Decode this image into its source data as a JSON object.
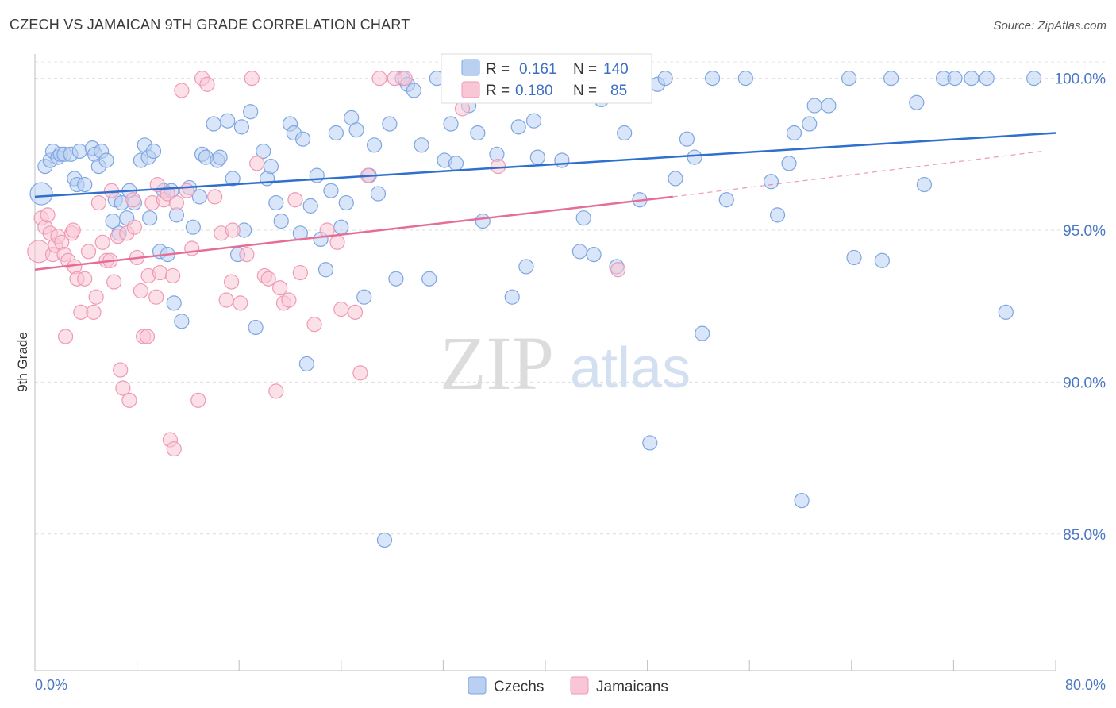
{
  "header": {
    "title": "CZECH VS JAMAICAN 9TH GRADE CORRELATION CHART",
    "source": "Source: ZipAtlas.com"
  },
  "watermark": {
    "zip": "ZIP",
    "atlas": "atlas"
  },
  "legend_top": {
    "rows": [
      {
        "r_label": "R =",
        "r_value": "0.161",
        "n_label": "N =",
        "n_value": "140"
      },
      {
        "r_label": "R =",
        "r_value": "0.180",
        "n_label": "N =",
        "n_value": "85"
      }
    ]
  },
  "legend_bottom": {
    "items": [
      "Czechs",
      "Jamaicans"
    ]
  },
  "chart_data": {
    "type": "scatter",
    "title": "CZECH VS JAMAICAN 9TH GRADE CORRELATION CHART",
    "xlabel": "",
    "ylabel": "9th Grade",
    "xlim": [
      0,
      80
    ],
    "ylim": [
      80.5,
      100.8
    ],
    "x_tick_labels": [
      "0.0%",
      "80.0%"
    ],
    "y_ticks": [
      85,
      90,
      95,
      100
    ],
    "y_tick_labels": [
      "85.0%",
      "90.0%",
      "95.0%",
      "100.0%"
    ],
    "grid": "horizontal-dashed",
    "legend": "top-center and bottom",
    "colors": {
      "czechs_fill": "#b9d0f2",
      "czechs_stroke": "#7ea6e0",
      "czechs_line": "#2f6fce",
      "jamaicans_fill": "#f9c6d6",
      "jamaicans_stroke": "#ef99b5",
      "jamaicans_line": "#e66d97",
      "tick_label": "#4a78c2"
    },
    "series": [
      {
        "name": "Czechs",
        "r": 0.161,
        "n": 140,
        "trend": {
          "x0": 0,
          "y0": 96.1,
          "x1": 80,
          "y1": 98.2
        },
        "points": [
          [
            0.5,
            96.2
          ],
          [
            0.8,
            97.1
          ],
          [
            1.2,
            97.3
          ],
          [
            1.4,
            97.6
          ],
          [
            1.8,
            97.4
          ],
          [
            2.0,
            97.5
          ],
          [
            2.3,
            97.5
          ],
          [
            2.8,
            97.5
          ],
          [
            3.1,
            96.7
          ],
          [
            3.3,
            96.5
          ],
          [
            3.5,
            97.6
          ],
          [
            3.9,
            96.5
          ],
          [
            4.5,
            97.7
          ],
          [
            4.7,
            97.5
          ],
          [
            5.0,
            97.1
          ],
          [
            5.2,
            97.6
          ],
          [
            5.6,
            97.3
          ],
          [
            6.1,
            95.3
          ],
          [
            6.3,
            96.0
          ],
          [
            6.6,
            94.9
          ],
          [
            6.8,
            95.9
          ],
          [
            7.2,
            95.4
          ],
          [
            7.4,
            96.3
          ],
          [
            7.8,
            95.9
          ],
          [
            8.3,
            97.3
          ],
          [
            8.6,
            97.8
          ],
          [
            8.9,
            97.4
          ],
          [
            9.0,
            95.4
          ],
          [
            9.3,
            97.6
          ],
          [
            9.8,
            94.3
          ],
          [
            10.1,
            96.3
          ],
          [
            10.4,
            94.2
          ],
          [
            10.9,
            92.6
          ],
          [
            11.1,
            95.5
          ],
          [
            11.5,
            92.0
          ],
          [
            12.1,
            96.4
          ],
          [
            12.4,
            95.1
          ],
          [
            12.9,
            96.1
          ],
          [
            13.1,
            97.5
          ],
          [
            13.4,
            97.4
          ],
          [
            14.0,
            98.5
          ],
          [
            14.3,
            97.3
          ],
          [
            14.5,
            97.4
          ],
          [
            15.1,
            98.6
          ],
          [
            15.5,
            96.7
          ],
          [
            15.9,
            94.2
          ],
          [
            16.4,
            95.0
          ],
          [
            16.9,
            98.9
          ],
          [
            17.3,
            91.8
          ],
          [
            17.9,
            97.6
          ],
          [
            18.2,
            96.7
          ],
          [
            18.5,
            97.1
          ],
          [
            18.9,
            95.9
          ],
          [
            19.3,
            95.3
          ],
          [
            20.0,
            98.5
          ],
          [
            20.3,
            98.2
          ],
          [
            20.8,
            94.9
          ],
          [
            21.0,
            98.0
          ],
          [
            21.3,
            90.6
          ],
          [
            21.6,
            95.8
          ],
          [
            22.1,
            96.8
          ],
          [
            22.4,
            94.7
          ],
          [
            22.8,
            93.7
          ],
          [
            23.2,
            96.3
          ],
          [
            23.6,
            98.2
          ],
          [
            24.0,
            95.1
          ],
          [
            24.4,
            95.9
          ],
          [
            24.8,
            98.7
          ],
          [
            25.2,
            98.3
          ],
          [
            25.8,
            92.8
          ],
          [
            26.2,
            96.8
          ],
          [
            26.6,
            97.8
          ],
          [
            27.4,
            84.8
          ],
          [
            27.8,
            98.5
          ],
          [
            28.3,
            93.4
          ],
          [
            28.8,
            100.0
          ],
          [
            29.2,
            99.8
          ],
          [
            29.7,
            99.6
          ],
          [
            30.3,
            97.8
          ],
          [
            30.9,
            93.4
          ],
          [
            31.5,
            100.0
          ],
          [
            32.1,
            97.3
          ],
          [
            32.6,
            98.5
          ],
          [
            33.0,
            97.2
          ],
          [
            33.6,
            99.6
          ],
          [
            34.0,
            99.1
          ],
          [
            34.3,
            100.0
          ],
          [
            34.7,
            98.2
          ],
          [
            35.1,
            95.3
          ],
          [
            35.6,
            100.0
          ],
          [
            36.2,
            97.5
          ],
          [
            37.4,
            92.8
          ],
          [
            37.9,
            98.4
          ],
          [
            38.5,
            93.8
          ],
          [
            39.1,
            98.6
          ],
          [
            39.4,
            97.4
          ],
          [
            40.4,
            100.0
          ],
          [
            41.3,
            97.3
          ],
          [
            42.7,
            94.3
          ],
          [
            43.0,
            95.4
          ],
          [
            43.8,
            94.2
          ],
          [
            45.6,
            93.8
          ],
          [
            46.2,
            98.2
          ],
          [
            47.0,
            100.0
          ],
          [
            47.4,
            96.0
          ],
          [
            48.2,
            88.0
          ],
          [
            48.8,
            99.8
          ],
          [
            49.4,
            100.0
          ],
          [
            50.2,
            96.7
          ],
          [
            51.1,
            98.0
          ],
          [
            51.7,
            97.4
          ],
          [
            52.3,
            91.6
          ],
          [
            53.1,
            100.0
          ],
          [
            54.2,
            96.0
          ],
          [
            55.7,
            100.0
          ],
          [
            57.7,
            96.6
          ],
          [
            58.2,
            95.5
          ],
          [
            59.1,
            97.2
          ],
          [
            59.5,
            98.2
          ],
          [
            60.1,
            86.1
          ],
          [
            60.7,
            98.5
          ],
          [
            61.1,
            99.1
          ],
          [
            62.2,
            99.1
          ],
          [
            63.8,
            100.0
          ],
          [
            64.2,
            94.1
          ],
          [
            66.4,
            94.0
          ],
          [
            67.1,
            100.0
          ],
          [
            69.1,
            99.2
          ],
          [
            69.7,
            96.5
          ],
          [
            71.2,
            100.0
          ],
          [
            72.1,
            100.0
          ],
          [
            73.4,
            100.0
          ],
          [
            74.6,
            100.0
          ],
          [
            76.1,
            92.3
          ],
          [
            78.3,
            100.0
          ],
          [
            36.8,
            99.7
          ],
          [
            44.4,
            99.3
          ],
          [
            26.9,
            96.2
          ],
          [
            16.2,
            98.4
          ],
          [
            10.7,
            96.3
          ]
        ]
      },
      {
        "name": "Jamaicans",
        "r": 0.18,
        "n": 85,
        "trend": {
          "x0": 0,
          "y0": 93.7,
          "x1": 50,
          "y1": 96.1,
          "dashed_to": {
            "x": 79,
            "y": 97.6
          }
        },
        "points": [
          [
            0.3,
            94.3
          ],
          [
            0.5,
            95.4
          ],
          [
            0.8,
            95.1
          ],
          [
            1.0,
            95.5
          ],
          [
            1.2,
            94.9
          ],
          [
            1.4,
            94.2
          ],
          [
            1.6,
            94.5
          ],
          [
            1.8,
            94.8
          ],
          [
            2.1,
            94.6
          ],
          [
            2.3,
            94.2
          ],
          [
            2.6,
            94.0
          ],
          [
            2.9,
            94.9
          ],
          [
            3.1,
            93.8
          ],
          [
            3.3,
            93.4
          ],
          [
            3.6,
            92.3
          ],
          [
            3.9,
            93.4
          ],
          [
            4.2,
            94.3
          ],
          [
            4.6,
            92.3
          ],
          [
            4.8,
            92.8
          ],
          [
            5.0,
            95.9
          ],
          [
            5.3,
            94.6
          ],
          [
            5.6,
            94.0
          ],
          [
            6.0,
            96.3
          ],
          [
            6.2,
            93.3
          ],
          [
            6.5,
            94.8
          ],
          [
            6.7,
            90.4
          ],
          [
            6.9,
            89.8
          ],
          [
            7.2,
            94.9
          ],
          [
            7.4,
            89.4
          ],
          [
            7.7,
            96.0
          ],
          [
            8.0,
            94.1
          ],
          [
            8.3,
            93.0
          ],
          [
            8.5,
            91.5
          ],
          [
            8.9,
            93.5
          ],
          [
            9.2,
            95.9
          ],
          [
            9.5,
            92.8
          ],
          [
            9.8,
            93.6
          ],
          [
            10.1,
            96.0
          ],
          [
            10.4,
            96.2
          ],
          [
            10.8,
            93.5
          ],
          [
            11.1,
            95.9
          ],
          [
            11.5,
            99.6
          ],
          [
            11.9,
            96.3
          ],
          [
            12.3,
            94.4
          ],
          [
            12.8,
            89.4
          ],
          [
            13.1,
            100.0
          ],
          [
            13.5,
            99.8
          ],
          [
            14.1,
            96.1
          ],
          [
            14.6,
            94.9
          ],
          [
            15.0,
            92.7
          ],
          [
            15.4,
            93.3
          ],
          [
            16.1,
            92.6
          ],
          [
            16.6,
            94.2
          ],
          [
            17.0,
            100.0
          ],
          [
            17.4,
            97.2
          ],
          [
            18.0,
            93.5
          ],
          [
            18.3,
            93.4
          ],
          [
            18.9,
            89.7
          ],
          [
            19.2,
            93.1
          ],
          [
            19.5,
            92.6
          ],
          [
            19.9,
            92.7
          ],
          [
            20.4,
            96.0
          ],
          [
            20.8,
            93.6
          ],
          [
            21.9,
            91.9
          ],
          [
            22.9,
            95.0
          ],
          [
            23.7,
            94.6
          ],
          [
            24.0,
            92.4
          ],
          [
            25.1,
            92.3
          ],
          [
            25.5,
            90.3
          ],
          [
            26.1,
            96.8
          ],
          [
            27.0,
            100.0
          ],
          [
            28.2,
            100.0
          ],
          [
            29.0,
            100.0
          ],
          [
            33.5,
            99.0
          ],
          [
            36.3,
            97.1
          ],
          [
            45.7,
            93.7
          ],
          [
            2.4,
            91.5
          ],
          [
            10.6,
            88.1
          ],
          [
            10.9,
            87.8
          ],
          [
            7.8,
            95.1
          ],
          [
            9.6,
            96.5
          ],
          [
            15.5,
            95.0
          ],
          [
            8.8,
            91.5
          ],
          [
            3.0,
            95.0
          ],
          [
            5.9,
            94.0
          ]
        ]
      }
    ]
  }
}
